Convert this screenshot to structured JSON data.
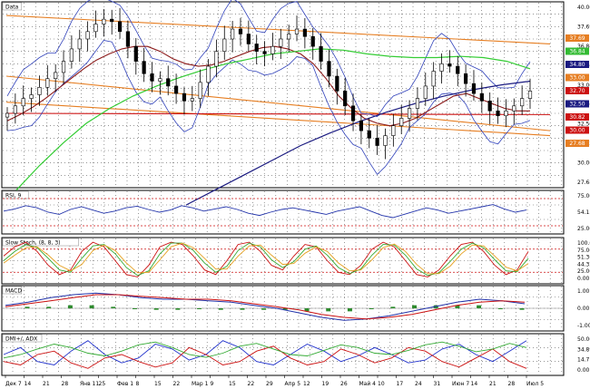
{
  "chart_data": [
    {
      "type": "candlestick",
      "panel": "price",
      "title": "Data",
      "y_ticks": [
        "40.00",
        "37.69",
        "36.84",
        "34.80",
        "33.00",
        "32.70",
        "32.50",
        "30.82",
        "30.00",
        "27.68"
      ],
      "value_badges": [
        {
          "label": "37.69",
          "color": "#e67e22"
        },
        {
          "label": "36.84",
          "color": "#33bb33"
        },
        {
          "label": "34.80",
          "color": "#1a1a80"
        },
        {
          "label": "33.00",
          "color": "#e67e22"
        },
        {
          "label": "32.70",
          "color": "#cc1111"
        },
        {
          "label": "32.50",
          "color": "#1a1a80"
        },
        {
          "label": "30.82",
          "color": "#cc1111"
        },
        {
          "label": "30.00",
          "color": "#cc1111"
        },
        {
          "label": "27.68",
          "color": "#e67e22"
        }
      ],
      "series": [
        {
          "name": "Close",
          "color": "#000000",
          "values": [
            32.0,
            32.6,
            33.2,
            33.5,
            34.1,
            34.8,
            35.3,
            36.2,
            37.2,
            38.0,
            38.6,
            39.2,
            39.6,
            39.4,
            38.6,
            37.4,
            36.2,
            35.2,
            34.6,
            34.8,
            34.2,
            33.6,
            33.0,
            33.2,
            34.5,
            35.8,
            37.0,
            38.0,
            38.8,
            38.4,
            37.6,
            37.0,
            36.8,
            37.4,
            38.0,
            38.4,
            38.8,
            38.2,
            37.4,
            36.2,
            35.0,
            33.8,
            32.6,
            31.4,
            30.6,
            30.0,
            29.4,
            30.2,
            31.0,
            31.6,
            32.4,
            33.2,
            34.2,
            35.4,
            36.0,
            35.8,
            35.2,
            34.4,
            33.6,
            33.0,
            32.2,
            31.8,
            32.2,
            32.6,
            33.2,
            33.8
          ]
        },
        {
          "name": "MA short",
          "color": "#8b1a1a",
          "values": [
            31.4,
            31.9,
            32.5,
            33.2,
            34.0,
            34.8,
            35.6,
            36.3,
            36.8,
            37.2,
            37.4,
            37.4,
            37.0,
            36.4,
            36.0,
            35.8,
            35.9,
            36.2,
            36.6,
            37.0,
            37.3,
            37.4,
            37.2,
            36.8,
            36.0,
            34.8,
            33.4,
            32.4,
            31.6,
            31.2,
            31.0,
            31.2,
            31.6,
            32.2,
            32.8,
            33.4,
            33.6,
            33.2,
            32.8,
            32.4,
            32.2,
            32.2
          ]
        },
        {
          "name": "MA medium",
          "color": "#33cc33",
          "values": [
            25.8,
            27.8,
            29.6,
            31.2,
            32.4,
            33.4,
            34.2,
            34.9,
            35.5,
            36.0,
            36.4,
            36.8,
            37.0,
            37.2,
            37.1,
            36.8,
            36.6,
            36.5,
            36.5,
            36.6,
            36.5,
            36.2,
            35.6
          ]
        },
        {
          "name": "MA long",
          "color": "#1a1a80",
          "values": [
            24.6,
            25.8,
            27.0,
            28.2,
            29.4,
            30.4,
            31.3,
            32.1,
            32.8,
            33.4,
            33.9,
            34.3,
            34.6
          ]
        }
      ],
      "channel_lines": [
        {
          "color": "#e67e22",
          "from": 39.9,
          "to": 37.6
        },
        {
          "color": "#e67e22",
          "from": 35.0,
          "to": 30.6
        },
        {
          "color": "#e67e22",
          "from": 32.9,
          "to": 30.2
        },
        {
          "color": "#cc1111",
          "from": 32.0,
          "to": 31.9
        }
      ]
    },
    {
      "type": "line",
      "panel": "rsi",
      "title": "RSI, 9",
      "y_ticks": [
        "75.00",
        "54.15",
        "25.00"
      ],
      "series": [
        {
          "name": "RSI",
          "color": "#2233aa",
          "values": [
            52,
            56,
            62,
            58,
            50,
            46,
            55,
            60,
            54,
            48,
            52,
            58,
            61,
            55,
            50,
            54,
            62,
            58,
            52,
            56,
            60,
            55,
            48,
            44,
            50,
            55,
            58,
            54,
            50,
            46,
            52,
            56,
            60,
            52,
            44,
            40,
            46,
            52,
            58,
            54,
            48,
            52,
            56,
            60,
            64,
            56,
            50,
            54
          ]
        }
      ]
    },
    {
      "type": "line",
      "panel": "stochastic",
      "title": "Slow Stoch, (8, 8, 3)",
      "y_ticks": [
        "100.00",
        "75.00",
        "51.36",
        "44.32",
        "25.00",
        "0.00"
      ],
      "series": [
        {
          "name": "%K",
          "color": "#cc1111",
          "values": [
            60,
            80,
            90,
            70,
            40,
            20,
            30,
            70,
            90,
            80,
            50,
            20,
            15,
            40,
            80,
            90,
            85,
            60,
            30,
            20,
            50,
            85,
            90,
            70,
            40,
            30,
            60,
            85,
            80,
            50,
            25,
            20,
            40,
            75,
            90,
            80,
            50,
            20,
            15,
            30,
            60,
            85,
            90,
            70,
            40,
            20,
            30,
            70
          ]
        },
        {
          "name": "%D",
          "color": "#33aa33",
          "values": [
            50,
            70,
            85,
            78,
            55,
            30,
            25,
            55,
            82,
            85,
            65,
            35,
            18,
            28,
            65,
            88,
            88,
            72,
            45,
            25,
            38,
            72,
            88,
            80,
            52,
            35,
            48,
            75,
            82,
            62,
            35,
            22,
            32,
            62,
            85,
            84,
            62,
            32,
            18,
            24,
            48,
            75,
            88,
            78,
            52,
            28,
            26,
            55
          ]
        },
        {
          "name": "Signal",
          "color": "#e6a020",
          "values": [
            45,
            62,
            78,
            80,
            62,
            40,
            28,
            42,
            72,
            84,
            72,
            45,
            24,
            25,
            52,
            80,
            88,
            78,
            55,
            32,
            32,
            60,
            82,
            84,
            62,
            42,
            44,
            66,
            80,
            70,
            45,
            28,
            30,
            52,
            78,
            86,
            70,
            42,
            22,
            22,
            38,
            65,
            84,
            82,
            60,
            36,
            28,
            44
          ]
        }
      ]
    },
    {
      "type": "histogram",
      "panel": "macd",
      "title": "MACD",
      "y_ticks": [
        "1.00",
        "0.00",
        "-1.00"
      ],
      "series": [
        {
          "name": "MACD",
          "color": "#2233aa",
          "values": [
            0.2,
            0.4,
            0.7,
            0.9,
            1.0,
            0.9,
            0.7,
            0.6,
            0.6,
            0.5,
            0.4,
            0.2,
            0.0,
            -0.3,
            -0.6,
            -0.8,
            -0.7,
            -0.5,
            -0.2,
            0.1,
            0.4,
            0.6,
            0.5,
            0.3
          ]
        },
        {
          "name": "Signal",
          "color": "#cc1111",
          "values": [
            0.1,
            0.3,
            0.5,
            0.7,
            0.9,
            0.9,
            0.8,
            0.7,
            0.6,
            0.6,
            0.5,
            0.3,
            0.1,
            -0.1,
            -0.4,
            -0.6,
            -0.7,
            -0.6,
            -0.4,
            -0.1,
            0.2,
            0.4,
            0.5,
            0.4
          ]
        },
        {
          "name": "Histogram",
          "color": "#2e8b2e",
          "values": [
            0.1,
            0.1,
            0.2,
            0.2,
            0.1,
            0.0,
            -0.1,
            -0.1,
            0.0,
            -0.1,
            -0.1,
            -0.1,
            -0.1,
            -0.2,
            -0.2,
            -0.2,
            0.0,
            0.1,
            0.2,
            0.2,
            0.2,
            0.2,
            0.0,
            -0.1
          ]
        }
      ]
    },
    {
      "type": "line",
      "panel": "dmi",
      "title": "DMI+/, ADX",
      "y_ticks": [
        "50.00",
        "34.89",
        "14.71",
        "0.00"
      ],
      "series": [
        {
          "name": "DMI+",
          "color": "#2233cc",
          "values": [
            30,
            40,
            20,
            15,
            35,
            50,
            30,
            18,
            25,
            45,
            38,
            22,
            30,
            50,
            40,
            20,
            15,
            30,
            45,
            35,
            20,
            28,
            40,
            30,
            18,
            22,
            38,
            45,
            30,
            20,
            35,
            50
          ]
        },
        {
          "name": "DMI-",
          "color": "#cc1111",
          "values": [
            20,
            15,
            30,
            35,
            18,
            10,
            25,
            30,
            20,
            12,
            18,
            40,
            30,
            15,
            20,
            35,
            42,
            25,
            15,
            20,
            38,
            30,
            18,
            25,
            40,
            35,
            20,
            12,
            25,
            38,
            20,
            10
          ]
        },
        {
          "name": "ADX",
          "color": "#33aa33",
          "values": [
            25,
            30,
            38,
            45,
            40,
            32,
            28,
            35,
            44,
            48,
            40,
            30,
            26,
            32,
            42,
            46,
            38,
            30,
            28,
            36,
            44,
            40,
            32,
            30,
            36,
            44,
            48,
            42,
            34,
            38,
            46,
            40
          ]
        }
      ]
    }
  ],
  "x_axis_labels": [
    "Дек 7",
    "14",
    "21",
    "28",
    "Янв 11",
    "25",
    "Фев 1",
    "8",
    "15",
    "22",
    "Мар 1",
    "9",
    "15",
    "22",
    "29",
    "Апр 5",
    "12",
    "19",
    "26",
    "Май 4",
    "10",
    "17",
    "24",
    "31",
    "Июн 7",
    "14",
    "21",
    "28",
    "Июл 5"
  ]
}
